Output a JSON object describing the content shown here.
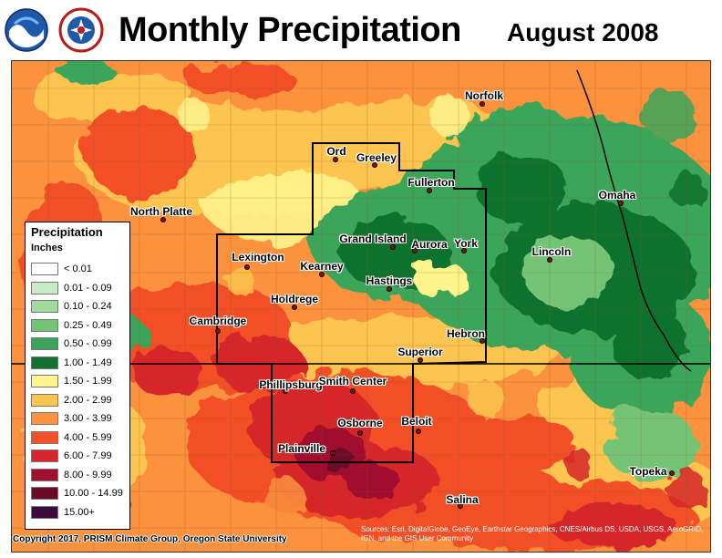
{
  "header": {
    "title": "Monthly Precipitation",
    "period": "August 2008"
  },
  "logos": {
    "noaa": "NOAA",
    "nws": "NATIONAL WEATHER SERVICE"
  },
  "legend": {
    "title": "Precipitation",
    "units": "Inches",
    "classes": [
      {
        "label": "< 0.01",
        "color": "#ffffff"
      },
      {
        "label": "0.01 - 0.09",
        "color": "#c9ebc9"
      },
      {
        "label": "0.10 - 0.24",
        "color": "#a1d9a1"
      },
      {
        "label": "0.25 - 0.49",
        "color": "#74c476"
      },
      {
        "label": "0.50 - 0.99",
        "color": "#3aa55a"
      },
      {
        "label": "1.00 - 1.49",
        "color": "#11722f"
      },
      {
        "label": "1.50 - 1.99",
        "color": "#fff58c"
      },
      {
        "label": "2.00 - 2.99",
        "color": "#fdc44f"
      },
      {
        "label": "3.00 - 3.99",
        "color": "#fc913e"
      },
      {
        "label": "4.00 - 5.99",
        "color": "#f25027"
      },
      {
        "label": "6.00 - 7.99",
        "color": "#d7262b"
      },
      {
        "label": "8.00 - 9.99",
        "color": "#a10f2e"
      },
      {
        "label": "10.00 - 14.99",
        "color": "#6b0a26"
      },
      {
        "label": "15.00+",
        "color": "#3c0a3c"
      }
    ]
  },
  "cities": [
    {
      "name": "Norfolk"
    },
    {
      "name": "Ord"
    },
    {
      "name": "Greeley"
    },
    {
      "name": "Fullerton"
    },
    {
      "name": "Omaha"
    },
    {
      "name": "North Platte"
    },
    {
      "name": "Grand Island"
    },
    {
      "name": "Aurora"
    },
    {
      "name": "York"
    },
    {
      "name": "Lincoln"
    },
    {
      "name": "Lexington"
    },
    {
      "name": "Kearney"
    },
    {
      "name": "Hastings"
    },
    {
      "name": "Holdrege"
    },
    {
      "name": "Cambridge"
    },
    {
      "name": "Hebron"
    },
    {
      "name": "Superior"
    },
    {
      "name": "Phillipsburg"
    },
    {
      "name": "Smith Center"
    },
    {
      "name": "Osborne"
    },
    {
      "name": "Beloit"
    },
    {
      "name": "Plainville"
    },
    {
      "name": "Topeka"
    },
    {
      "name": "Salina"
    }
  ],
  "copyright": "Copyright 2017, PRISM Climate Group, Oregon State University",
  "sources": "Sources: Esri, DigitalGlobe, GeoEye, Earthstar Geographics, CNES/Airbus DS, USDA, USGS, AeroGRID, IGN, and the GIS User Community"
}
